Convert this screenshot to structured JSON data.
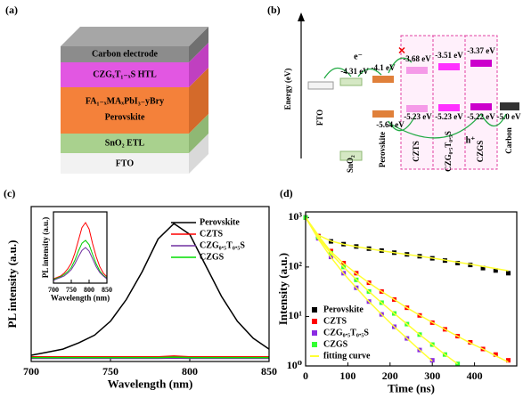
{
  "panel_labels": [
    "(a)",
    "(b)",
    "(c)",
    "(d)"
  ],
  "device": {
    "layers": [
      [
        "Carbon electrode"
      ],
      [
        "CZGₓT₁₋ₓS HTL"
      ],
      [
        "FA₁₋ₓMAₓPbI₃₋yBry",
        "Perovskite"
      ],
      [
        "SnO₂ ETL"
      ],
      [
        "FTO"
      ]
    ]
  },
  "energy": {
    "axis_label": "Energy (eV)",
    "electron": "e⁻",
    "hole": "h⁺",
    "layers": [
      {
        "name": "FTO"
      },
      {
        "name": "SnO₂",
        "upper": "-4.31 eV"
      },
      {
        "name": "Perovskite",
        "upper": "-4.1 eV",
        "lower": "-5.64 eV"
      },
      {
        "name": "CZTS",
        "upper": "-3.68 eV",
        "lower": "-5.23 eV"
      },
      {
        "name": "CZG₀.₅T₀.₅S",
        "upper": "-3.51 eV",
        "lower": "-5.23 eV"
      },
      {
        "name": "CZGS",
        "upper": "-3.37 eV",
        "lower": "-5.22 eV"
      },
      {
        "name": "Carbon",
        "lower": "-5.0 eV"
      }
    ]
  },
  "chart_data": [
    {
      "type": "line",
      "xlabel": "Wavelength (nm)",
      "ylabel": "PL intensity (a.u.)",
      "legend": "upper right",
      "x": [
        700,
        710,
        720,
        730,
        740,
        750,
        760,
        770,
        780,
        790,
        800,
        810,
        820,
        830,
        840,
        850
      ],
      "xlim": [
        700,
        850
      ],
      "xticks": [
        700,
        750,
        800,
        850
      ],
      "ylim": [
        0,
        1
      ],
      "series": [
        {
          "name": "Perovskite",
          "color": "#000000",
          "values": [
            0.04,
            0.06,
            0.08,
            0.12,
            0.17,
            0.26,
            0.4,
            0.58,
            0.79,
            0.89,
            0.82,
            0.62,
            0.42,
            0.26,
            0.15,
            0.08
          ]
        },
        {
          "name": "CZTS",
          "color": "#ff0000",
          "values": [
            0.03,
            0.03,
            0.03,
            0.03,
            0.03,
            0.03,
            0.03,
            0.03,
            0.03,
            0.035,
            0.03,
            0.03,
            0.03,
            0.03,
            0.03,
            0.03
          ]
        },
        {
          "name": "CZG₀.₅T₀.₅S",
          "color": "#7030a0",
          "values": [
            0.02,
            0.02,
            0.02,
            0.02,
            0.02,
            0.02,
            0.02,
            0.02,
            0.02,
            0.022,
            0.02,
            0.02,
            0.02,
            0.02,
            0.02,
            0.02
          ]
        },
        {
          "name": "CZGS",
          "color": "#00dd00",
          "values": [
            0.025,
            0.025,
            0.025,
            0.025,
            0.025,
            0.025,
            0.025,
            0.025,
            0.025,
            0.028,
            0.025,
            0.025,
            0.025,
            0.025,
            0.025,
            0.025
          ]
        }
      ]
    },
    {
      "type": "line",
      "xlabel": "Wavelength (nm)",
      "ylabel": "PL intensity (a.u.)",
      "x": [
        700,
        710,
        720,
        730,
        740,
        750,
        760,
        770,
        780,
        790,
        800,
        810,
        820,
        830,
        840,
        850
      ],
      "xlim": [
        700,
        850
      ],
      "xticks": [
        700,
        750,
        800,
        850
      ],
      "ylim": [
        0,
        1
      ],
      "series": [
        {
          "color": "#ff0000",
          "values": [
            0.06,
            0.08,
            0.1,
            0.14,
            0.2,
            0.28,
            0.42,
            0.6,
            0.78,
            0.85,
            0.76,
            0.55,
            0.37,
            0.23,
            0.14,
            0.09
          ]
        },
        {
          "color": "#00cc00",
          "values": [
            0.05,
            0.07,
            0.09,
            0.12,
            0.16,
            0.22,
            0.32,
            0.45,
            0.56,
            0.6,
            0.54,
            0.4,
            0.27,
            0.17,
            0.11,
            0.07
          ]
        },
        {
          "color": "#7030a0",
          "values": [
            0.04,
            0.06,
            0.08,
            0.1,
            0.14,
            0.19,
            0.27,
            0.37,
            0.46,
            0.5,
            0.45,
            0.34,
            0.23,
            0.15,
            0.1,
            0.06
          ]
        }
      ]
    },
    {
      "type": "scatter",
      "log_y": true,
      "xlabel": "Time (ns)",
      "ylabel": "Intensity (a.u.)",
      "legend": "lower left",
      "x": [
        0,
        30,
        60,
        90,
        120,
        150,
        180,
        210,
        240,
        270,
        300,
        330,
        360,
        390,
        420,
        450,
        480
      ],
      "xlim": [
        0,
        500
      ],
      "xticks": [
        0,
        100,
        200,
        300,
        400
      ],
      "ylim": [
        1,
        1300
      ],
      "yticks": [
        {
          "value": 1,
          "label": "10⁰"
        },
        {
          "value": 10,
          "label": "10¹"
        },
        {
          "value": 100,
          "label": "10²"
        },
        {
          "value": 1000,
          "label": "10³"
        }
      ],
      "fit_name": "fitting curve",
      "fit_color": "#ffff33",
      "series": [
        {
          "name": "Perovskite",
          "color": "#000000",
          "values": [
            1000,
            420,
            330,
            290,
            260,
            235,
            215,
            195,
            180,
            165,
            150,
            135,
            120,
            110,
            95,
            85,
            75
          ],
          "fit": [
            1000,
            440,
            335,
            288,
            258,
            234,
            213,
            196,
            180,
            165,
            151,
            138,
            125,
            114,
            103,
            93,
            84
          ]
        },
        {
          "name": "CZTS",
          "color": "#ff0000",
          "values": [
            1000,
            420,
            210,
            120,
            75,
            48,
            32,
            22,
            15,
            10.5,
            7.5,
            5.5,
            4,
            3,
            2.2,
            1.7,
            1.3
          ],
          "fit": [
            1000,
            430,
            205,
            118,
            74,
            48,
            32,
            22,
            15,
            10.6,
            7.6,
            5.5,
            4,
            2.9,
            2.2,
            1.6,
            1.2
          ]
        },
        {
          "name": "CZG₀.₅T₀.₅S",
          "color": "#8a2be2",
          "values": [
            1000,
            380,
            160,
            75,
            38,
            20,
            11,
            6.2,
            3.6,
            2.1,
            1.3,
            null,
            null,
            null,
            null,
            null,
            null
          ],
          "fit": [
            1000,
            370,
            158,
            74,
            38,
            20,
            11,
            6.2,
            3.6,
            2.1,
            1.25,
            null,
            null,
            null,
            null,
            null,
            null
          ]
        },
        {
          "name": "CZGS",
          "color": "#33ff33",
          "values": [
            1000,
            400,
            190,
            100,
            55,
            32,
            19,
            11.5,
            7,
            4.3,
            2.7,
            1.7,
            1.1,
            null,
            null,
            null,
            null
          ],
          "fit": [
            1000,
            395,
            188,
            100,
            56,
            32,
            19,
            11.5,
            7,
            4.3,
            2.7,
            1.7,
            1.1,
            null,
            null,
            null,
            null
          ]
        }
      ]
    }
  ]
}
